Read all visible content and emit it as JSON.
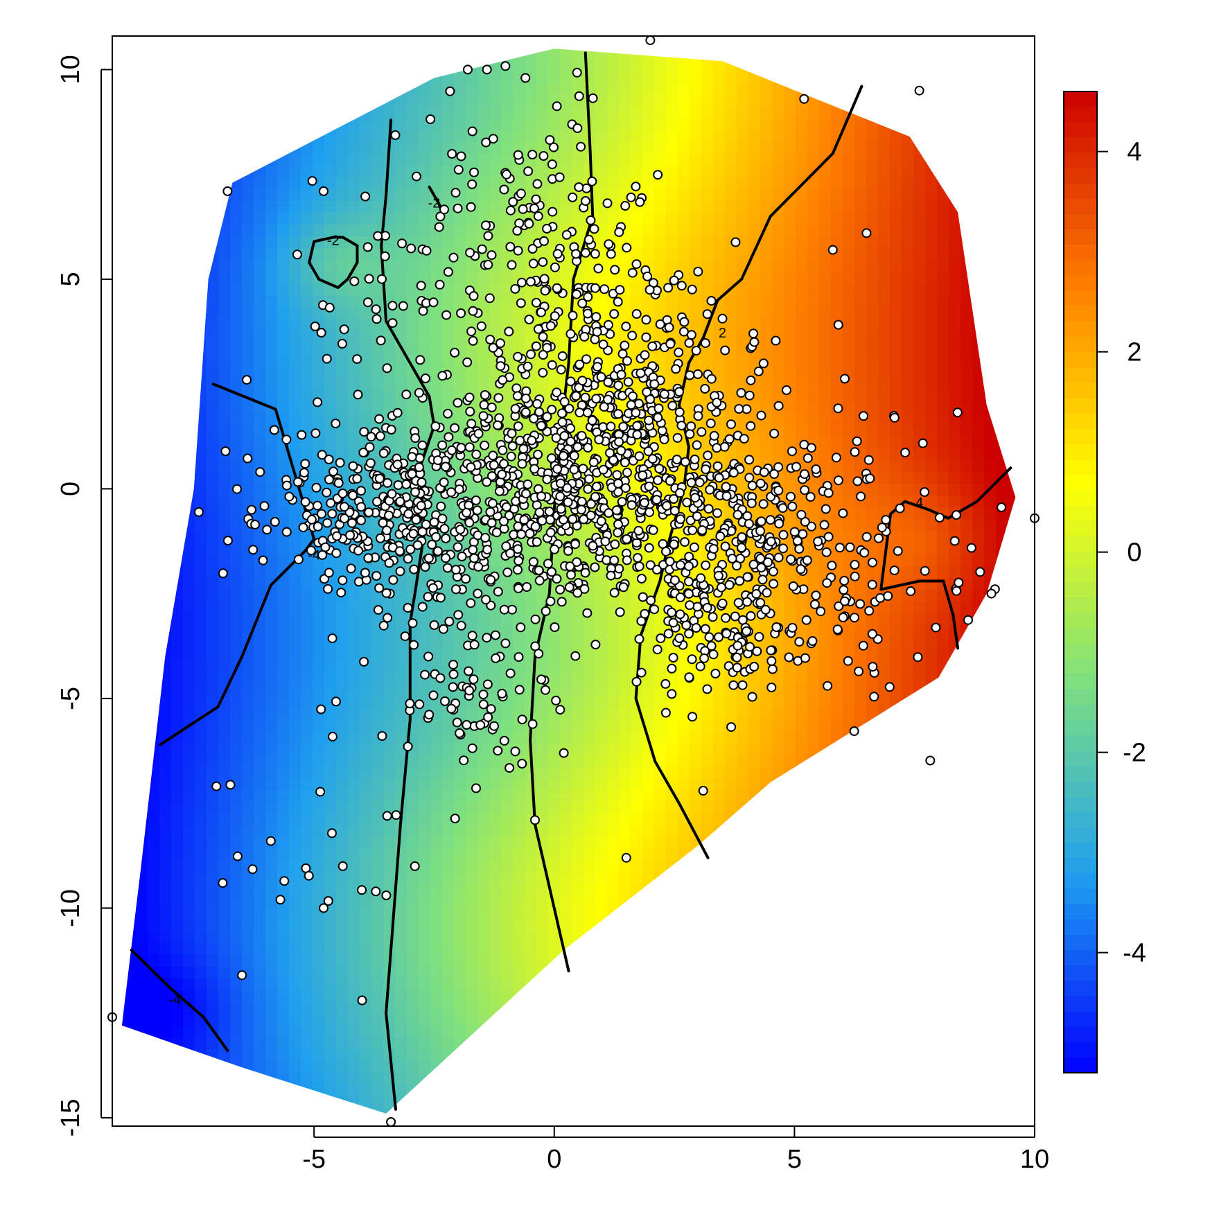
{
  "chart_data": {
    "type": "heatmap",
    "title": "",
    "xlabel": "",
    "ylabel": "",
    "xlim": [
      -9.2,
      10
    ],
    "ylim": [
      -15.2,
      10.8
    ],
    "x_ticks": [
      -5,
      0,
      5,
      10
    ],
    "x_tick_labels": [
      "-5",
      "0",
      "5",
      "10"
    ],
    "y_ticks": [
      -15,
      -10,
      -5,
      0,
      5,
      10
    ],
    "y_tick_labels": [
      "-15",
      "-10",
      "-5",
      "0",
      "5",
      "10"
    ],
    "grid": false,
    "colorbar": {
      "range": [
        -5.2,
        4.6
      ],
      "ticks": [
        -4,
        -2,
        0,
        2,
        4
      ],
      "tick_labels": [
        "-4",
        "-2",
        "0",
        "2",
        "4"
      ],
      "colors": [
        "#0000ff",
        "#1f9fef",
        "#7fe07f",
        "#ffff00",
        "#ff8000",
        "#cc0000"
      ]
    },
    "field": {
      "description": "interpolated surface, values increase from left (about -5) to right (about 4.5)",
      "x_at_minus4": -6.5,
      "x_at_4": 8.0
    },
    "hull": [
      [
        -6.7,
        7.3
      ],
      [
        -2.5,
        9.8
      ],
      [
        0,
        10.5
      ],
      [
        3.5,
        10.2
      ],
      [
        7.4,
        8.4
      ],
      [
        8.4,
        6.6
      ],
      [
        9.0,
        2.0
      ],
      [
        9.6,
        -0.2
      ],
      [
        9.0,
        -2.5
      ],
      [
        8.0,
        -4.5
      ],
      [
        4.5,
        -7.0
      ],
      [
        3.0,
        -8.5
      ],
      [
        0.2,
        -11.0
      ],
      [
        -3.5,
        -14.9
      ],
      [
        -6.5,
        -13.8
      ],
      [
        -9.0,
        -12.8
      ],
      [
        -8.6,
        -9.0
      ],
      [
        -8.1,
        -4.0
      ],
      [
        -7.5,
        0
      ],
      [
        -7.2,
        5.0
      ]
    ],
    "contours": [
      {
        "label": "-4",
        "label_at": [
          -5.0,
          -1.6
        ],
        "points": [
          [
            -7.1,
            2.5
          ],
          [
            -5.8,
            1.9
          ],
          [
            -5.0,
            -1.2
          ],
          [
            -5.2,
            -1.5
          ],
          [
            -5.9,
            -2.3
          ],
          [
            -6.5,
            -4.0
          ],
          [
            -7.0,
            -5.2
          ],
          [
            -8.2,
            -6.1
          ]
        ]
      },
      {
        "label": "-4",
        "label_at": [
          -7.9,
          -12.2
        ],
        "points": [
          [
            -8.8,
            -11.0
          ],
          [
            -8.0,
            -11.9
          ],
          [
            -7.3,
            -12.6
          ],
          [
            -6.8,
            -13.4
          ]
        ]
      },
      {
        "label": "",
        "points": [
          [
            -3.4,
            8.8
          ],
          [
            -3.5,
            7.0
          ],
          [
            -3.6,
            5.8
          ],
          [
            -3.5,
            4.0
          ],
          [
            -3.0,
            3.0
          ],
          [
            -2.6,
            2.2
          ],
          [
            -2.5,
            1.5
          ],
          [
            -2.8,
            0.5
          ],
          [
            -2.7,
            -1.0
          ],
          [
            -2.9,
            -2.5
          ],
          [
            -3.0,
            -3.2
          ],
          [
            -3.0,
            -5.5
          ],
          [
            -3.2,
            -8.0
          ],
          [
            -3.4,
            -11.0
          ],
          [
            -3.5,
            -12.5
          ],
          [
            -3.3,
            -14.8
          ]
        ]
      },
      {
        "label": "-2",
        "label_at": [
          -4.6,
          5.9
        ],
        "points": [
          [
            -4.6,
            6.0
          ],
          [
            -5.0,
            5.9
          ],
          [
            -5.1,
            5.4
          ],
          [
            -4.9,
            5.0
          ],
          [
            -4.5,
            4.8
          ],
          [
            -4.3,
            5.0
          ],
          [
            -4.1,
            5.4
          ],
          [
            -4.1,
            5.8
          ],
          [
            -4.4,
            6.0
          ],
          [
            -4.6,
            6.0
          ]
        ]
      },
      {
        "label": "-2",
        "label_at": [
          -2.5,
          6.8
        ],
        "points": [
          [
            -2.6,
            7.2
          ],
          [
            -2.4,
            6.8
          ],
          [
            -2.3,
            6.5
          ]
        ]
      },
      {
        "label": "",
        "points": [
          [
            0.65,
            10.4
          ],
          [
            0.75,
            8.0
          ],
          [
            0.8,
            6.5
          ],
          [
            0.4,
            5.0
          ],
          [
            0.3,
            3.0
          ],
          [
            0.1,
            1.0
          ],
          [
            0.0,
            -0.5
          ],
          [
            -0.1,
            -2.5
          ],
          [
            -0.4,
            -4.0
          ],
          [
            -0.5,
            -6.0
          ],
          [
            -0.4,
            -8.0
          ],
          [
            -0.1,
            -9.5
          ],
          [
            0.3,
            -11.5
          ]
        ]
      },
      {
        "label": "2",
        "label_at": [
          3.5,
          3.7
        ],
        "points": [
          [
            6.4,
            9.6
          ],
          [
            5.8,
            8.0
          ],
          [
            4.5,
            6.5
          ],
          [
            3.9,
            5.0
          ],
          [
            3.4,
            4.5
          ],
          [
            3.1,
            3.6
          ],
          [
            2.8,
            3.0
          ],
          [
            2.6,
            2.0
          ],
          [
            2.8,
            1.0
          ],
          [
            2.7,
            0.0
          ],
          [
            2.4,
            -1.2
          ],
          [
            2.2,
            -2.2
          ],
          [
            1.8,
            -3.5
          ],
          [
            1.7,
            -5.0
          ],
          [
            2.1,
            -6.5
          ],
          [
            2.6,
            -7.5
          ],
          [
            3.2,
            -8.8
          ]
        ]
      },
      {
        "label": "4",
        "label_at": [
          7.6,
          -0.35
        ],
        "points": [
          [
            9.5,
            0.5
          ],
          [
            8.8,
            -0.3
          ],
          [
            8.2,
            -0.7
          ],
          [
            7.8,
            -0.5
          ],
          [
            7.3,
            -0.3
          ],
          [
            7.0,
            -0.6
          ],
          [
            6.9,
            -1.5
          ],
          [
            6.8,
            -2.4
          ],
          [
            7.6,
            -2.2
          ],
          [
            8.1,
            -2.2
          ],
          [
            8.3,
            -3.0
          ],
          [
            8.4,
            -3.8
          ]
        ]
      }
    ],
    "points_summary": {
      "count_visible_approx": 1900,
      "outliers": [
        [
          2.0,
          10.7
        ],
        [
          7.6,
          9.5
        ],
        [
          -9.2,
          -12.6
        ],
        [
          -3.4,
          -15.1
        ],
        [
          10.0,
          -0.7
        ],
        [
          -6.8,
          7.1
        ],
        [
          -4.8,
          7.1
        ],
        [
          -1.8,
          10.0
        ],
        [
          -1.4,
          10.0
        ],
        [
          -0.6,
          9.8
        ],
        [
          5.2,
          9.3
        ],
        [
          -6.4,
          2.6
        ],
        [
          -6.3,
          -0.5
        ],
        [
          -6.5,
          -11.6
        ],
        [
          -6.9,
          -9.4
        ],
        [
          -5.7,
          -9.8
        ],
        [
          -4.8,
          -10.0
        ],
        [
          -4.0,
          -12.2
        ],
        [
          1.5,
          -8.8
        ],
        [
          0.2,
          -6.3
        ],
        [
          3.1,
          -7.2
        ],
        [
          6.5,
          6.1
        ],
        [
          5.8,
          5.7
        ],
        [
          9.1,
          -2.5
        ],
        [
          -0.4,
          -7.9
        ],
        [
          -2.9,
          -9.0
        ],
        [
          -5.9,
          -8.4
        ],
        [
          -4.4,
          -9.0
        ]
      ]
    }
  }
}
